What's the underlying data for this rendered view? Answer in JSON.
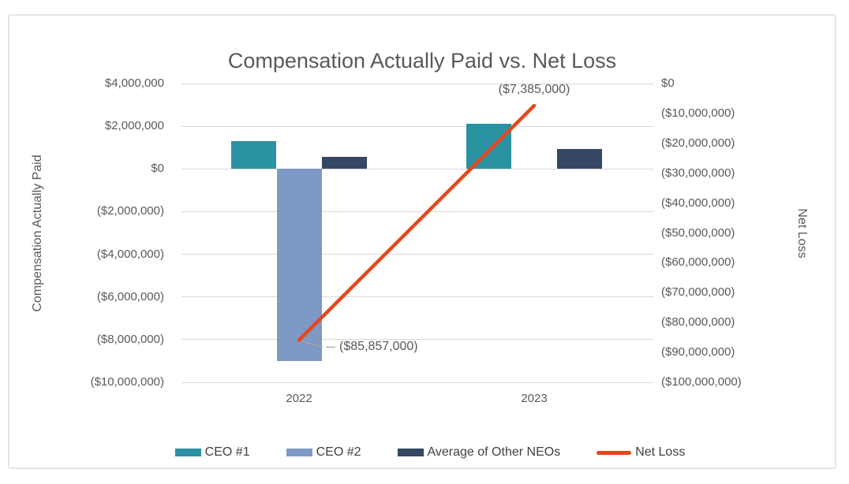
{
  "chart_data": {
    "type": "combo-bar-line",
    "title": "Compensation Actually Paid vs. Net Loss",
    "categories": [
      "2022",
      "2023"
    ],
    "bar_series": [
      {
        "name": "CEO #1",
        "color": "#2b92a2",
        "values": [
          1300000,
          2100000
        ]
      },
      {
        "name": "CEO #2",
        "color": "#7e99c3",
        "values": [
          -9000000,
          null
        ]
      },
      {
        "name": "Average of Other NEOs",
        "color": "#344864",
        "values": [
          550000,
          950000
        ]
      }
    ],
    "line_series": {
      "name": "Net Loss",
      "color": "#e5471d",
      "axis": "right",
      "values": [
        -85857000,
        -7385000
      ],
      "point_labels": [
        "($85,857,000)",
        "($7,385,000)"
      ]
    },
    "left_axis": {
      "title": "Compensation Actually Paid",
      "max": 4000000,
      "min": -10000000,
      "ticks": [
        {
          "label": "$4,000,000",
          "value": 4000000
        },
        {
          "label": "$2,000,000",
          "value": 2000000
        },
        {
          "label": "$0",
          "value": 0
        },
        {
          "label": "($2,000,000)",
          "value": -2000000
        },
        {
          "label": "($4,000,000)",
          "value": -4000000
        },
        {
          "label": "($6,000,000)",
          "value": -6000000
        },
        {
          "label": "($8,000,000)",
          "value": -8000000
        },
        {
          "label": "($10,000,000)",
          "value": -10000000
        }
      ]
    },
    "right_axis": {
      "title": "Net Loss",
      "max": 0,
      "min": -100000000,
      "ticks": [
        {
          "label": "$0",
          "value": 0
        },
        {
          "label": "($10,000,000)",
          "value": -10000000
        },
        {
          "label": "($20,000,000)",
          "value": -20000000
        },
        {
          "label": "($30,000,000)",
          "value": -30000000
        },
        {
          "label": "($40,000,000)",
          "value": -40000000
        },
        {
          "label": "($50,000,000)",
          "value": -50000000
        },
        {
          "label": "($60,000,000)",
          "value": -60000000
        },
        {
          "label": "($70,000,000)",
          "value": -70000000
        },
        {
          "label": "($80,000,000)",
          "value": -80000000
        },
        {
          "label": "($90,000,000)",
          "value": -90000000
        },
        {
          "label": "($100,000,000)",
          "value": -100000000
        }
      ]
    },
    "legend": [
      "CEO #1",
      "CEO #2",
      "Average of Other NEOs",
      "Net Loss"
    ],
    "legend_position": "bottom",
    "grid": true,
    "colors": {
      "title_text": "#595959",
      "axis_text": "#595959",
      "legend_text": "#404040",
      "gridline": "#d9d9d9",
      "leader_line": "#a6a6a6",
      "card_border": "#e4e6e9"
    }
  }
}
